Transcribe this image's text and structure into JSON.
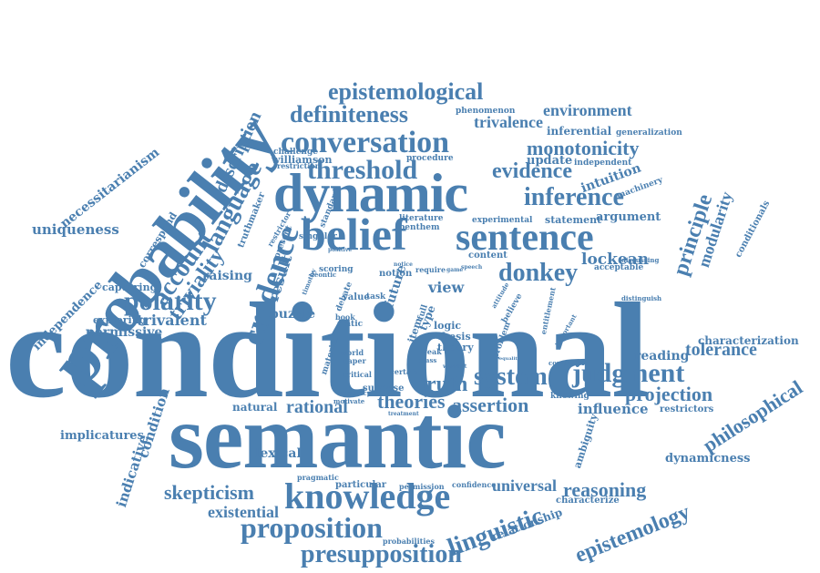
{
  "colors": {
    "word": "#4a7fb0",
    "background": "#ffffff"
  },
  "words": [
    "conditional",
    "semantic",
    "probability",
    "dynamic",
    "belief",
    "sentence",
    "knowledge",
    "proposition",
    "presupposition",
    "conversation",
    "threshold",
    "credence",
    "language",
    "account",
    "triviality",
    "polarity",
    "epistemological",
    "definiteness",
    "inference",
    "donkey",
    "judgment",
    "system",
    "truth",
    "linguistic",
    "reasoning",
    "epistemology",
    "philosophical",
    "projection",
    "tolerance",
    "principle",
    "modularity",
    "assertion",
    "theories",
    "rational",
    "skepticism",
    "existential",
    "universal",
    "description",
    "evidence",
    "monotonicity",
    "environment",
    "trivalence",
    "uniqueness",
    "necessitarianism",
    "independence",
    "implicatures",
    "indicative",
    "condition",
    "trivalent",
    "permissive",
    "exploring",
    "raising",
    "capturing",
    "lexical",
    "natural",
    "influence",
    "dynamicness",
    "characterization",
    "reading",
    "relationship",
    "lockean",
    "intuition",
    "argument",
    "update",
    "williamson",
    "result",
    "view",
    "puzzle",
    "future",
    "challenge",
    "correspond",
    "conditionals",
    "characterize",
    "ambiguity",
    "restrictors",
    "knowing",
    "statement",
    "experimental",
    "machinery",
    "independent",
    "generalization",
    "inferential",
    "phenomenon",
    "procedure",
    "restriction",
    "truthmaker",
    "standard",
    "literature",
    "benthem",
    "content",
    "acceptable",
    "singular",
    "present",
    "restrictor",
    "scoring",
    "notion",
    "require",
    "debate",
    "value",
    "task",
    "static",
    "book",
    "world",
    "paper",
    "critical",
    "suppose",
    "accuracy",
    "motivate",
    "type",
    "logic",
    "thesis",
    "theory",
    "problem",
    "believe",
    "compatible",
    "certain",
    "weak",
    "class",
    "item",
    "full",
    "particular",
    "pragmatic",
    "permission",
    "confidence",
    "probabilities",
    "timothy",
    "deontic",
    "material",
    "positive",
    "notice",
    "entitlement",
    "important",
    "attitude",
    "discussing",
    "distinguish",
    "equality",
    "treatment",
    "warrant",
    "speech",
    "game"
  ]
}
